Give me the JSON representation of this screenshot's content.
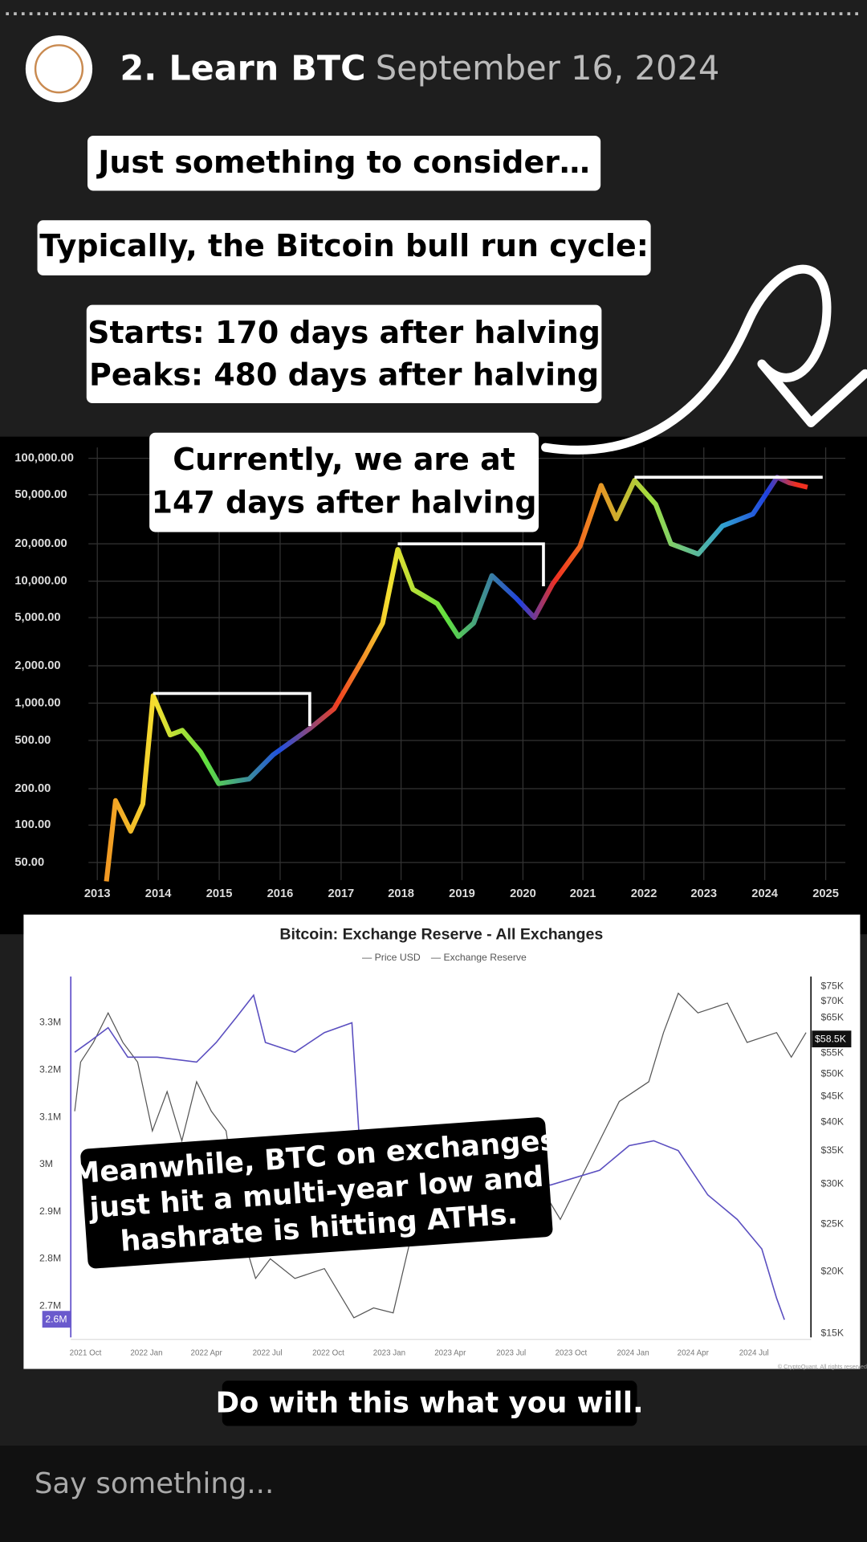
{
  "header": {
    "username": "2. Learn BTC",
    "date": "September 16, 2024"
  },
  "captions": [
    "Just something to consider…",
    "Typically, the Bitcoin bull run cycle:",
    "Starts: 170 days after halving",
    "Peaks: 480 days after halving",
    "Currently, we are at",
    "147 days after halving",
    "Meanwhile, BTC on exchanges",
    "just hit a multi-year low and",
    "hashrate is hitting ATHs.",
    "Do with this what you will."
  ],
  "price_chart": {
    "y_labels": [
      "100,000.00",
      "50,000.00",
      "20,000.00",
      "10,000.00",
      "5,000.00",
      "2,000.00",
      "1,000.00",
      "500.00",
      "200.00",
      "100.00",
      "50.00"
    ],
    "x_labels": [
      "2013",
      "2014",
      "2015",
      "2016",
      "2017",
      "2018",
      "2019",
      "2020",
      "2021",
      "2022",
      "2023",
      "2024",
      "2025"
    ]
  },
  "reserve_chart": {
    "title": "Bitcoin: Exchange Reserve - All Exchanges",
    "legend": [
      "— Price USD",
      "— Exchange Reserve"
    ],
    "left_labels": [
      "3.3M",
      "3.2M",
      "3.1M",
      "3M",
      "2.9M",
      "2.8M",
      "2.7M"
    ],
    "current_reserve": "2.6M",
    "right_labels": [
      "$75K",
      "$70K",
      "$65K",
      "$55K",
      "$50K",
      "$45K",
      "$40K",
      "$35K",
      "$30K",
      "$25K",
      "$20K",
      "$15K"
    ],
    "current_price": "$58.5K",
    "x_labels": [
      "2021 Oct",
      "2022 Jan",
      "2022 Apr",
      "2022 Jul",
      "2022 Oct",
      "2023 Jan",
      "2023 Apr",
      "2023 Jul",
      "2023 Oct",
      "2024 Jan",
      "2024 Apr",
      "2024 Jul"
    ],
    "credit": "© CryptoQuant. All rights reserved"
  },
  "composer": {
    "placeholder": "Say something..."
  }
}
